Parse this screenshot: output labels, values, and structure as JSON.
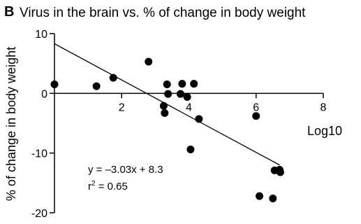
{
  "chart_data": {
    "type": "scatter",
    "panel_label": "B",
    "title": "Virus in the brain vs. % of change in body weight",
    "xlabel": "Log10",
    "ylabel": "% of change in body weight",
    "xlim": [
      0,
      8
    ],
    "ylim": [
      -20,
      10
    ],
    "xticks": [
      2,
      4,
      6,
      8
    ],
    "yticks": [
      10,
      0,
      -10,
      -20
    ],
    "grid": false,
    "points": [
      {
        "x": 0.0,
        "y": 1.5
      },
      {
        "x": 1.25,
        "y": 1.2
      },
      {
        "x": 1.75,
        "y": 2.6
      },
      {
        "x": 2.8,
        "y": 5.3
      },
      {
        "x": 3.25,
        "y": -2.1
      },
      {
        "x": 3.28,
        "y": -3.3
      },
      {
        "x": 3.35,
        "y": 1.5
      },
      {
        "x": 3.38,
        "y": -0.1
      },
      {
        "x": 3.75,
        "y": -0.1
      },
      {
        "x": 3.8,
        "y": 1.6
      },
      {
        "x": 3.95,
        "y": -0.6
      },
      {
        "x": 4.15,
        "y": 1.6
      },
      {
        "x": 4.3,
        "y": -4.3
      },
      {
        "x": 4.05,
        "y": -9.4
      },
      {
        "x": 6.0,
        "y": -3.8
      },
      {
        "x": 6.1,
        "y": -17.2
      },
      {
        "x": 6.5,
        "y": -17.6
      },
      {
        "x": 6.55,
        "y": -12.9
      },
      {
        "x": 6.7,
        "y": -12.8
      },
      {
        "x": 6.72,
        "y": -13.2
      }
    ],
    "regression": {
      "slope": -3.03,
      "intercept": 8.3,
      "x_range": [
        0,
        6.7
      ],
      "equation_label": "y = –3.03x + 8.3",
      "r2_label_prefix": "r",
      "r2_label_sup": "2",
      "r2_label_value": " = 0.65"
    },
    "marker_color": "#000000",
    "line_color": "#000000"
  }
}
